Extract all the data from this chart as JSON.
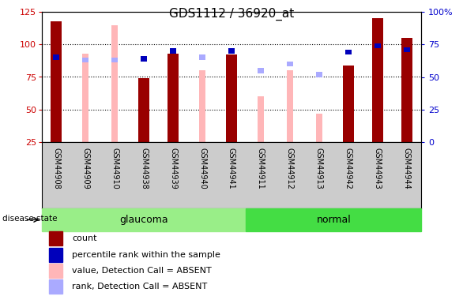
{
  "title": "GDS1112 / 36920_at",
  "samples": [
    "GSM44908",
    "GSM44909",
    "GSM44910",
    "GSM44938",
    "GSM44939",
    "GSM44940",
    "GSM44941",
    "GSM44911",
    "GSM44912",
    "GSM44913",
    "GSM44942",
    "GSM44943",
    "GSM44944"
  ],
  "glaucoma_count": 7,
  "count_values": [
    118,
    0,
    0,
    74,
    93,
    0,
    92,
    0,
    0,
    0,
    84,
    120,
    105
  ],
  "pink_values": [
    0,
    93,
    115,
    0,
    0,
    80,
    0,
    60,
    80,
    47,
    0,
    0,
    0
  ],
  "rank_values": [
    65,
    63,
    63,
    64,
    70,
    65,
    70,
    55,
    60,
    52,
    69,
    74,
    71
  ],
  "rank_is_blue_dark": [
    true,
    false,
    false,
    true,
    true,
    false,
    true,
    false,
    false,
    false,
    true,
    true,
    true
  ],
  "ylim_left": [
    25,
    125
  ],
  "yticks_left": [
    25,
    50,
    75,
    100,
    125
  ],
  "yticks_right": [
    0,
    25,
    50,
    75,
    100
  ],
  "yticklabels_right": [
    "0",
    "25",
    "50",
    "75",
    "100%"
  ],
  "bar_color_dark_red": "#990000",
  "bar_color_pink": "#FFB6B8",
  "bar_color_blue_dark": "#0000BB",
  "bar_color_blue_light": "#AAAAFF",
  "glaucoma_color": "#99EE88",
  "normal_color": "#44DD44",
  "tick_bg_color": "#CCCCCC",
  "axis_color_left": "#CC0000",
  "axis_color_right": "#0000CC",
  "bar_width": 0.38,
  "pink_bar_width": 0.22,
  "rank_bar_height": 4,
  "rank_bar_width": 0.22
}
